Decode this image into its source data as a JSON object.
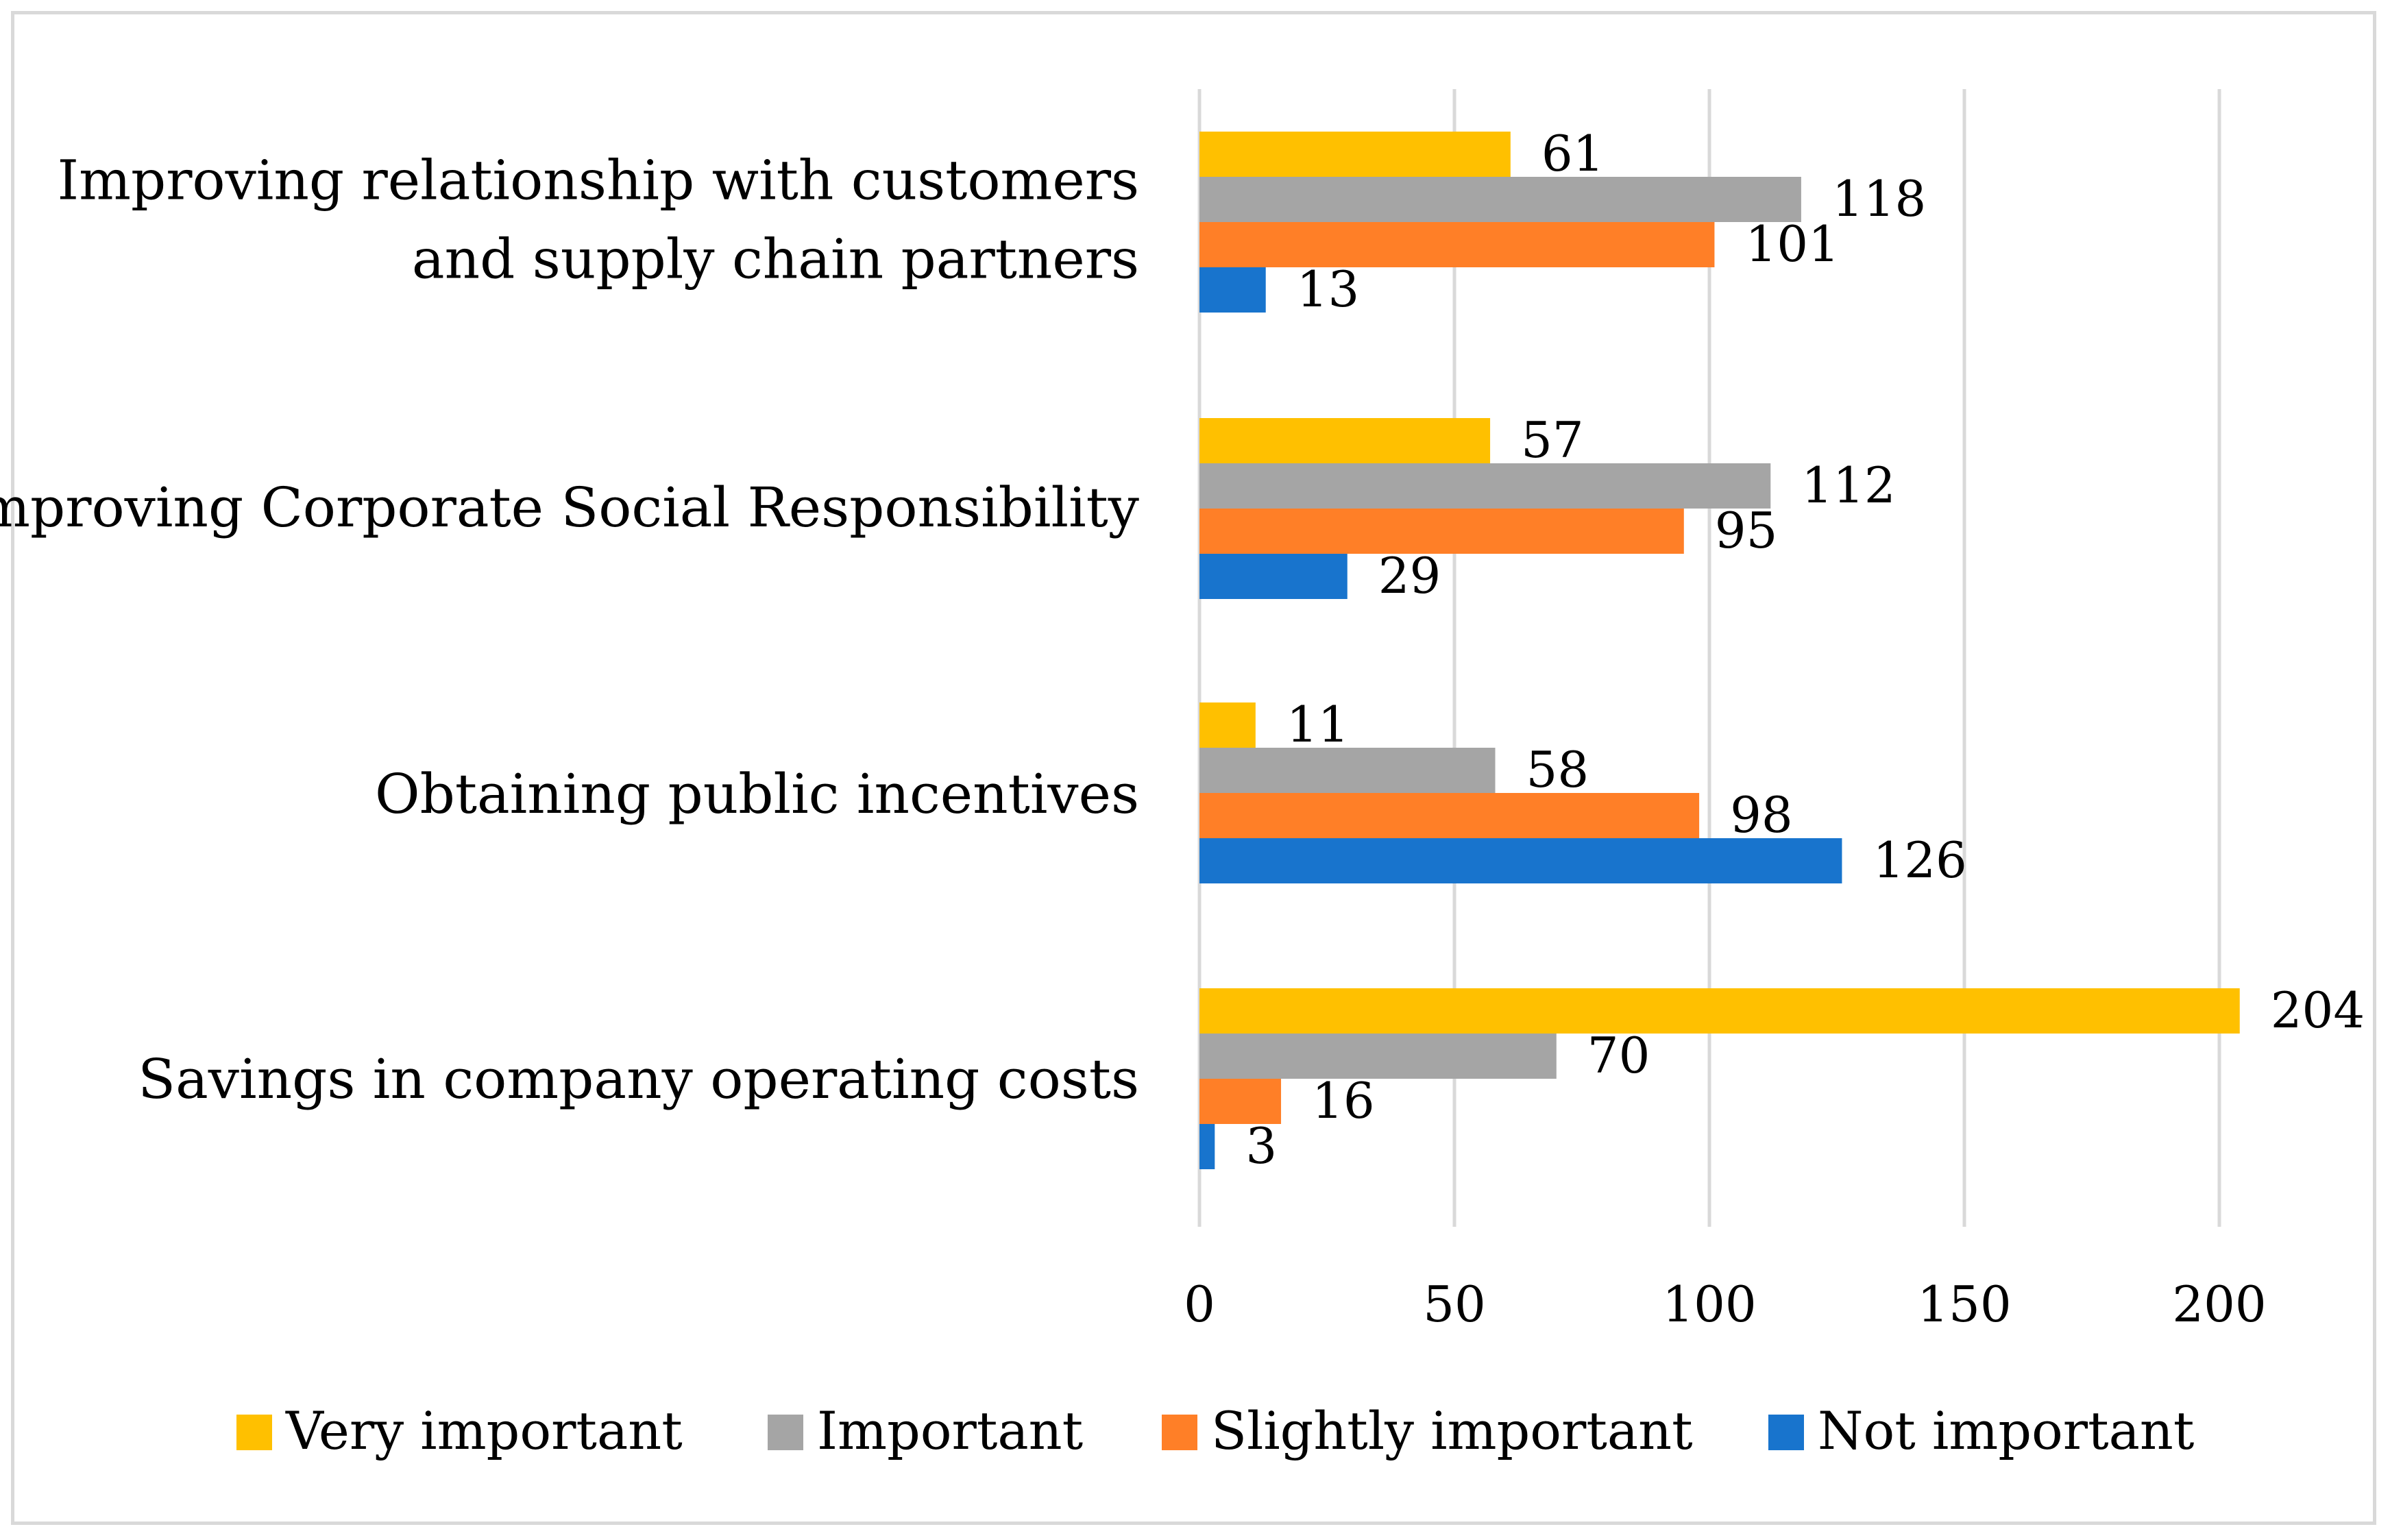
{
  "chart_data": {
    "type": "bar",
    "orientation": "horizontal",
    "categories": [
      [
        "Improving relationship with customers",
        "and supply chain partners"
      ],
      [
        "Improving Corporate Social Responsibility"
      ],
      [
        "Obtaining public incentives"
      ],
      [
        "Savings in company operating costs"
      ]
    ],
    "series": [
      {
        "name": "Very important",
        "color": "#FFC000",
        "values": [
          61,
          57,
          11,
          204
        ]
      },
      {
        "name": "Important",
        "color": "#A5A5A5",
        "values": [
          118,
          112,
          58,
          70
        ]
      },
      {
        "name": "Slightly important",
        "color": "#FF7F27",
        "values": [
          101,
          95,
          98,
          16
        ]
      },
      {
        "name": "Not important",
        "color": "#1874CD",
        "values": [
          13,
          29,
          126,
          3
        ]
      }
    ],
    "x_ticks": [
      "0",
      "50",
      "100",
      "150",
      "200"
    ],
    "xlim": [
      0,
      200
    ],
    "grid": true,
    "legend": "bottom",
    "title": "",
    "xlabel": "",
    "ylabel": ""
  }
}
